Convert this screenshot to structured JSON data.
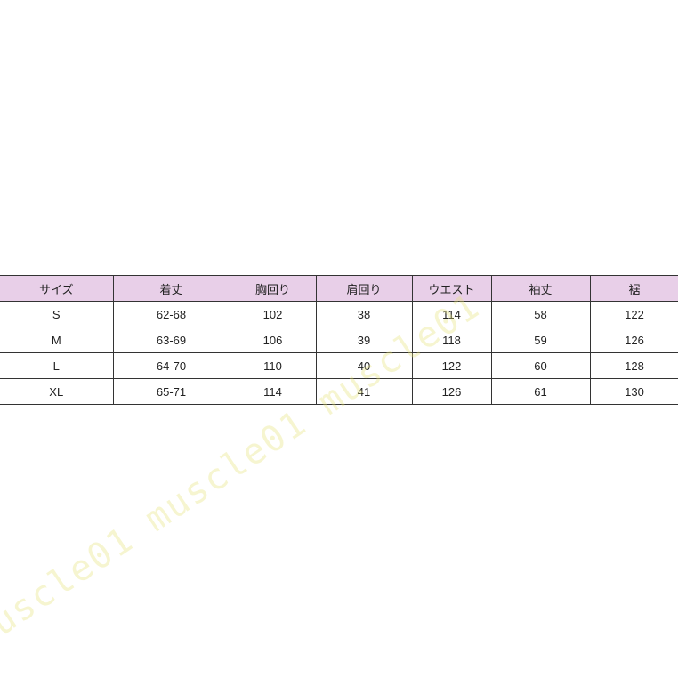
{
  "table": {
    "headers": [
      "サイズ",
      "着丈",
      "胸回り",
      "肩回り",
      "ウエスト",
      "袖丈",
      "裾"
    ],
    "rows": [
      [
        "S",
        "62-68",
        "102",
        "38",
        "114",
        "58",
        "122"
      ],
      [
        "M",
        "63-69",
        "106",
        "39",
        "118",
        "59",
        "126"
      ],
      [
        "L",
        "64-70",
        "110",
        "40",
        "122",
        "60",
        "128"
      ],
      [
        "XL",
        "65-71",
        "114",
        "41",
        "126",
        "61",
        "130"
      ]
    ]
  },
  "colors": {
    "header_bg": "#e8cfe8",
    "watermark": "#e6e178"
  },
  "watermark": "muscle01 muscle01 muscle01"
}
